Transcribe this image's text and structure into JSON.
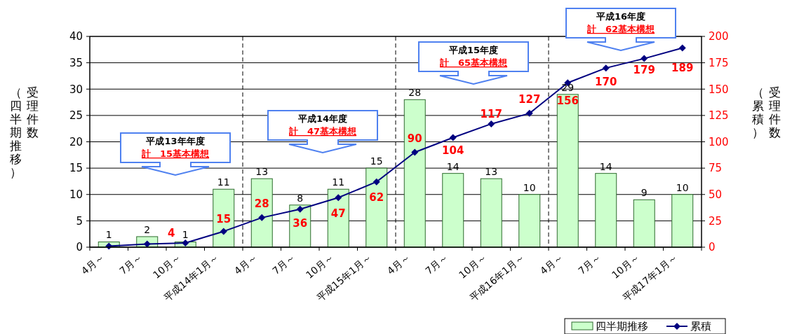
{
  "chart_data": {
    "type": "bar",
    "ylabel": "受理件数（四半期推移）",
    "y2label": "受理件数（累積）",
    "categories": [
      "4月～",
      "7月～",
      "10月～",
      "平成14年1月～",
      "4月～",
      "7月～",
      "10月～",
      "平成15年1月～",
      "4月～",
      "7月～",
      "10月～",
      "平成16年1月～",
      "4月～",
      "7月～",
      "10月～",
      "平成17年1月～"
    ],
    "series": [
      {
        "name": "四半期推移",
        "color": "#ccffcc",
        "values": [
          1,
          2,
          1,
          11,
          13,
          8,
          11,
          15,
          28,
          14,
          13,
          10,
          29,
          14,
          9,
          10
        ],
        "value_labels": [
          "1",
          "2",
          "1",
          "11",
          "13",
          "8",
          "11",
          "15",
          "28",
          "14",
          "13",
          "10",
          "29",
          "14",
          "9",
          "10"
        ]
      },
      {
        "name": "累積",
        "type": "line",
        "axis": "y2",
        "color": "#000080",
        "marker": "diamond",
        "values": [
          1,
          3,
          4,
          15,
          28,
          36,
          47,
          62,
          90,
          104,
          117,
          127,
          156,
          170,
          179,
          189
        ],
        "value_labels": [
          null,
          null,
          "4",
          "15",
          "28",
          "36",
          "47",
          "62",
          "90",
          "104",
          "117",
          "127",
          "156",
          "170",
          "179",
          "189"
        ]
      }
    ],
    "ylim": [
      0,
      40
    ],
    "yticks": [
      0,
      5,
      10,
      15,
      20,
      25,
      30,
      35,
      40
    ],
    "y2lim": [
      0,
      200
    ],
    "y2ticks": [
      0,
      25,
      50,
      75,
      100,
      125,
      150,
      175,
      200
    ],
    "grid": "y",
    "legend": "bottom right",
    "annotations": [
      "平成13年年度",
      "計　15基本構想",
      "平成14年度",
      "計　47基本構想",
      "平成15年度",
      "計　65基本構想",
      "平成16年度",
      "計　62基本構想"
    ]
  }
}
